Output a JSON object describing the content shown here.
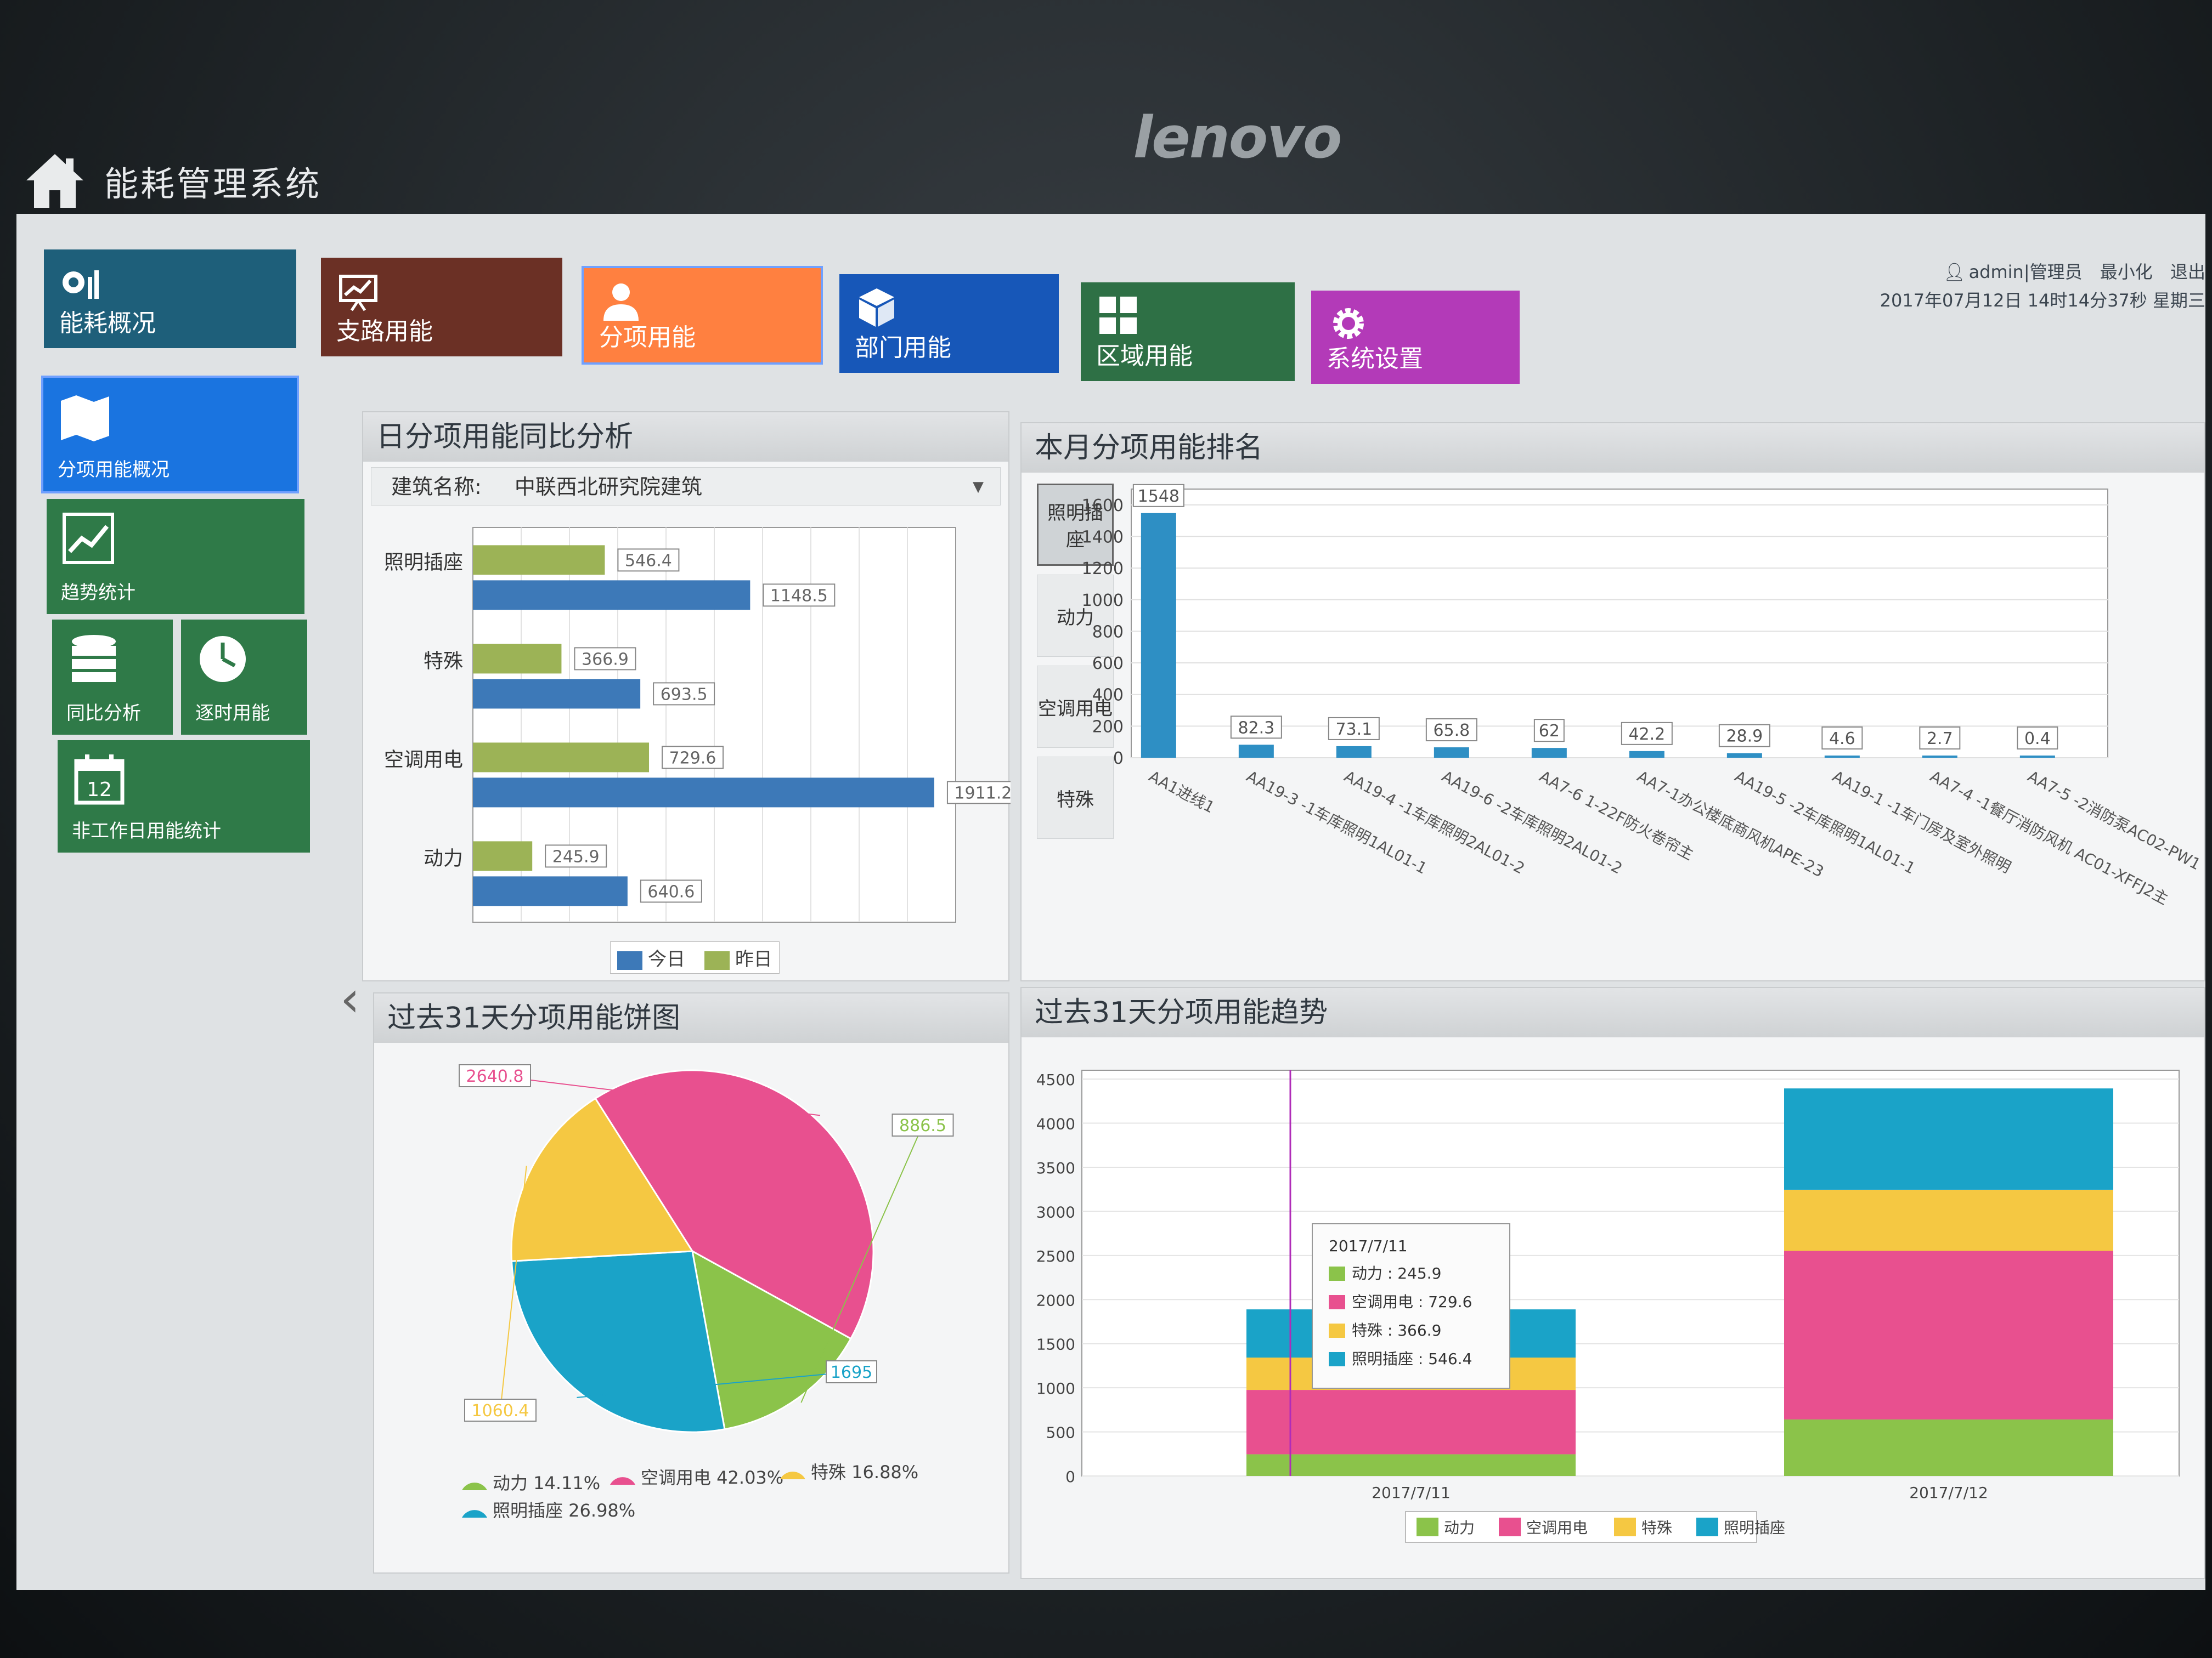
{
  "brand": "lenovo",
  "app_title": "能耗管理系统",
  "top_info": {
    "user": "admin|管理员",
    "minimize": "最小化",
    "logout": "退出",
    "datetime": "2017年07月12日 14时14分37秒 星期三"
  },
  "nav_tiles": [
    {
      "label": "能耗概况",
      "color": "#1e5f7a",
      "icon": "bar-chart-icon"
    },
    {
      "label": "支路用能",
      "color": "#6b3025",
      "icon": "presentation-chart-icon"
    },
    {
      "label": "分项用能",
      "color": "#ff8040",
      "icon": "person-icon"
    },
    {
      "label": "部门用能",
      "color": "#1757b8",
      "icon": "cube-icon"
    },
    {
      "label": "区域用能",
      "color": "#2e7045",
      "icon": "grid-icon"
    },
    {
      "label": "系统设置",
      "color": "#b33ab8",
      "icon": "gear-icon"
    }
  ],
  "side_menu": [
    {
      "label": "分项用能概况",
      "color": "#1a74e0",
      "icon": "map-icon"
    },
    {
      "label": "趋势统计",
      "color": "#2f7a48",
      "icon": "trend-icon"
    },
    {
      "label": "同比分析",
      "color": "#2f7a48",
      "icon": "database-icon"
    },
    {
      "label": "逐时用能",
      "color": "#2f7a48",
      "icon": "clock-icon"
    },
    {
      "label": "非工作日用能统计",
      "color": "#2f7a48",
      "icon": "calendar-icon",
      "calendar_day": "12"
    }
  ],
  "panels": {
    "daily_compare": {
      "title": "日分项用能同比分析",
      "building_label": "建筑名称:",
      "building_value": "中联西北研究院建筑"
    },
    "monthly_rank": {
      "title": "本月分项用能排名",
      "tabs": [
        "照明插座",
        "动力",
        "空调用电",
        "特殊"
      ],
      "active_tab": 0
    },
    "pie": {
      "title": "过去31天分项用能饼图"
    },
    "trend": {
      "title": "过去31天分项用能趋势"
    }
  },
  "colors": {
    "today": "#3d79b8",
    "yesterday": "#9cb356",
    "rank_bar": "#2e8fc4",
    "dynamic": "#8bc34a",
    "ac": "#e8508f",
    "special": "#f5c842",
    "lighting": "#1aa3c8"
  },
  "chart_data": [
    {
      "type": "bar",
      "orientation": "horizontal",
      "categories": [
        "照明插座",
        "特殊",
        "空调用电",
        "动力"
      ],
      "series": [
        {
          "name": "昨日",
          "values": [
            546.4,
            366.9,
            729.6,
            245.9
          ]
        },
        {
          "name": "今日",
          "values": [
            1148.5,
            693.5,
            1911.2,
            640.6
          ]
        }
      ],
      "legend": [
        "今日",
        "昨日"
      ],
      "xlim": [
        0,
        2000
      ],
      "grid": true,
      "legend_position": "bottom"
    },
    {
      "type": "bar",
      "categories": [
        "AA1进线1",
        "AA19-3 -1车库照明1AL01-1",
        "AA19-4 -1车库照明2AL01-2",
        "AA19-6 -2车库照明2AL01-2",
        "AA7-6 1-22F防火卷帘主",
        "AA7-1办公楼底商风机APE-23",
        "AA19-5 -2车库照明1AL01-1",
        "AA19-1 -1车门房及室外照明",
        "AA7-4 -1餐厅消防风机 AC01-XFFJ2主",
        "AA7-5 -2消防泵AC02-PW1"
      ],
      "values": [
        1548,
        82.3,
        73.1,
        65.8,
        62,
        42.2,
        28.9,
        4.6,
        2.7,
        0.4
      ],
      "y_ticks": [
        "0",
        "200",
        "400",
        "600",
        "800",
        "1000",
        "1200",
        "1400",
        "1600"
      ],
      "ylim": [
        0,
        1700
      ],
      "grid": true
    },
    {
      "type": "pie",
      "labels": [
        "动力",
        "空调用电",
        "特殊",
        "照明插座"
      ],
      "values": [
        886.5,
        2640.8,
        1060.4,
        1695
      ],
      "percent_labels": [
        "动力 14.11%",
        "空调用电 42.03%",
        "特殊 16.88%",
        "照明插座 26.98%"
      ],
      "legend_position": "bottom"
    },
    {
      "type": "bar",
      "stacked": true,
      "categories": [
        "2017/7/11",
        "2017/7/12"
      ],
      "series": [
        {
          "name": "动力",
          "values": [
            245.9,
            640.6
          ]
        },
        {
          "name": "空调用电",
          "values": [
            729.6,
            1911.2
          ]
        },
        {
          "name": "特殊",
          "values": [
            366.9,
            693.5
          ]
        },
        {
          "name": "照明插座",
          "values": [
            546.4,
            1148.5
          ]
        }
      ],
      "y_ticks": [
        "0",
        "500",
        "1000",
        "1500",
        "2000",
        "2500",
        "3000",
        "3500",
        "4000",
        "4500"
      ],
      "ylim": [
        0,
        4600
      ],
      "grid": true,
      "legend_position": "bottom",
      "tooltip": {
        "title": "2017/7/11",
        "lines": [
          "动力 : 245.9",
          "空调用电 : 729.6",
          "特殊 : 366.9",
          "照明插座 : 546.4"
        ]
      }
    }
  ]
}
